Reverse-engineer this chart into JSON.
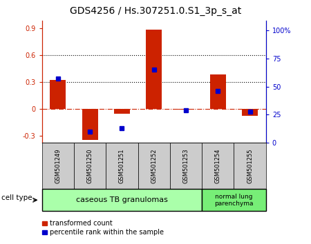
{
  "title": "GDS4256 / Hs.307251.0.S1_3p_s_at",
  "samples": [
    "GSM501249",
    "GSM501250",
    "GSM501251",
    "GSM501252",
    "GSM501253",
    "GSM501254",
    "GSM501255"
  ],
  "transformed_count": [
    0.32,
    -0.35,
    -0.06,
    0.88,
    -0.01,
    0.38,
    -0.08
  ],
  "percentile_rank": [
    0.57,
    0.1,
    0.13,
    0.65,
    0.29,
    0.46,
    0.28
  ],
  "bar_color": "#cc2200",
  "dot_color": "#0000cc",
  "left_ylim": [
    -0.38,
    0.98
  ],
  "right_ylim": [
    0,
    1.088
  ],
  "left_yticks": [
    -0.3,
    0.0,
    0.3,
    0.6,
    0.9
  ],
  "right_yticks": [
    0,
    0.25,
    0.5,
    0.75,
    1.0
  ],
  "right_yticklabels": [
    "0",
    "25",
    "50",
    "75",
    "100%"
  ],
  "left_yticklabels": [
    "-0.3",
    "0",
    "0.3",
    "0.6",
    "0.9"
  ],
  "hlines": [
    0.3,
    0.6
  ],
  "zero_line_y": 0.0,
  "cell_type_groups": [
    {
      "label": "caseous TB granulomas",
      "n_samples": 5,
      "color": "#aaffaa"
    },
    {
      "label": "normal lung\nparenchyma",
      "n_samples": 2,
      "color": "#77ee77"
    }
  ],
  "cell_type_label": "cell type",
  "legend_items": [
    {
      "label": "transformed count",
      "color": "#cc2200"
    },
    {
      "label": "percentile rank within the sample",
      "color": "#0000cc"
    }
  ],
  "title_fontsize": 10,
  "tick_fontsize": 7,
  "bar_width": 0.5,
  "sample_box_color": "#cccccc",
  "bg_color": "#ffffff"
}
